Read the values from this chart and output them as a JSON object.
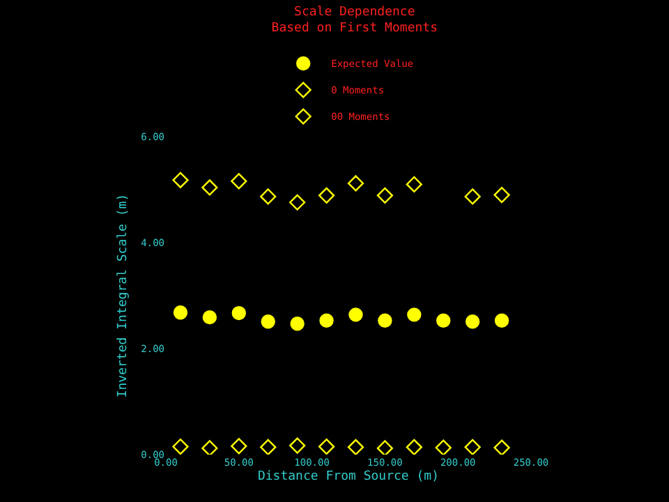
{
  "chart_data": {
    "type": "scatter",
    "title": "Scale Dependence\nBased on First Moments",
    "xlabel": "Distance From Source (m)",
    "ylabel": "Inverted Integral Scale (m)",
    "x": [
      10,
      30,
      50,
      70,
      90,
      110,
      130,
      150,
      170,
      190,
      210,
      230
    ],
    "series": [
      {
        "name": "Expected Value",
        "color": "#ffff00",
        "marker": "circle",
        "values": [
          2.68,
          2.59,
          2.67,
          2.51,
          2.47,
          2.53,
          2.64,
          2.53,
          2.64,
          2.53,
          2.51,
          2.53
        ]
      },
      {
        "name": "0 Moments",
        "color": "#ffff00",
        "marker": "diamond",
        "values": [
          0.15,
          0.12,
          0.16,
          0.14,
          0.17,
          0.15,
          0.14,
          0.12,
          0.14,
          0.13,
          0.14,
          0.13
        ]
      },
      {
        "name": "00 Moments",
        "color": "#ffff00",
        "marker": "diamond",
        "values": [
          5.18,
          5.04,
          5.16,
          4.87,
          4.76,
          4.89,
          5.12,
          4.89,
          5.1,
          null,
          4.87,
          4.9
        ]
      }
    ],
    "xlim": [
      0,
      250
    ],
    "xticks": [
      {
        "value": 0,
        "label": "0.00"
      },
      {
        "value": 50,
        "label": "50.00"
      },
      {
        "value": 100,
        "label": "100.00"
      },
      {
        "value": 150,
        "label": "150.00"
      },
      {
        "value": 200,
        "label": "200.00"
      },
      {
        "value": 250,
        "label": "250.00"
      }
    ],
    "ylim": [
      0,
      6
    ],
    "yticks": [
      {
        "value": 0,
        "label": "0.00"
      },
      {
        "value": 2,
        "label": "2.00"
      },
      {
        "value": 4,
        "label": "4.00"
      },
      {
        "value": 6,
        "label": "6.00"
      }
    ],
    "grid": false,
    "legend": "top"
  }
}
